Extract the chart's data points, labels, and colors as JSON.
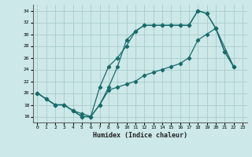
{
  "xlabel": "Humidex (Indice chaleur)",
  "background_color": "#cce8e8",
  "grid_color": "#aacccc",
  "line_color": "#1a6b6b",
  "xlim": [
    -0.5,
    23.5
  ],
  "ylim": [
    15.0,
    35.0
  ],
  "xticks": [
    0,
    1,
    2,
    3,
    4,
    5,
    6,
    7,
    8,
    9,
    10,
    11,
    12,
    13,
    14,
    15,
    16,
    17,
    18,
    19,
    20,
    21,
    22,
    23
  ],
  "yticks": [
    16,
    18,
    20,
    22,
    24,
    26,
    28,
    30,
    32,
    34
  ],
  "line1_x": [
    0,
    1,
    2,
    3,
    4,
    5,
    6,
    7,
    8,
    9,
    10,
    11,
    12,
    13,
    14,
    15,
    16,
    17,
    18,
    19,
    20,
    21,
    22
  ],
  "line1_y": [
    20,
    19,
    18,
    18,
    17,
    16,
    16,
    18,
    21,
    24.5,
    29,
    30.5,
    31.5,
    31.5,
    31.5,
    31.5,
    31.5,
    31.5,
    34,
    33.5,
    31,
    27,
    24.5
  ],
  "line2_x": [
    0,
    2,
    3,
    4,
    5,
    6,
    7,
    8,
    9,
    10,
    11,
    12,
    13,
    14,
    15,
    16,
    17,
    18,
    19,
    20,
    22
  ],
  "line2_y": [
    20,
    18,
    18,
    17,
    16.5,
    16,
    18,
    20.5,
    21,
    21.5,
    22,
    23,
    23.5,
    24,
    24.5,
    25,
    26,
    29,
    30,
    31,
    24.5
  ],
  "line3_x": [
    0,
    1,
    2,
    3,
    4,
    5,
    6,
    7,
    8,
    9,
    10,
    11,
    12,
    13,
    14,
    15,
    16,
    17,
    18,
    19,
    20,
    21,
    22
  ],
  "line3_y": [
    20,
    19,
    18,
    18,
    17,
    16,
    16,
    21,
    24.5,
    26,
    28,
    30.5,
    31.5,
    31.5,
    31.5,
    31.5,
    31.5,
    31.5,
    34,
    33.5,
    31,
    27,
    24.5
  ]
}
